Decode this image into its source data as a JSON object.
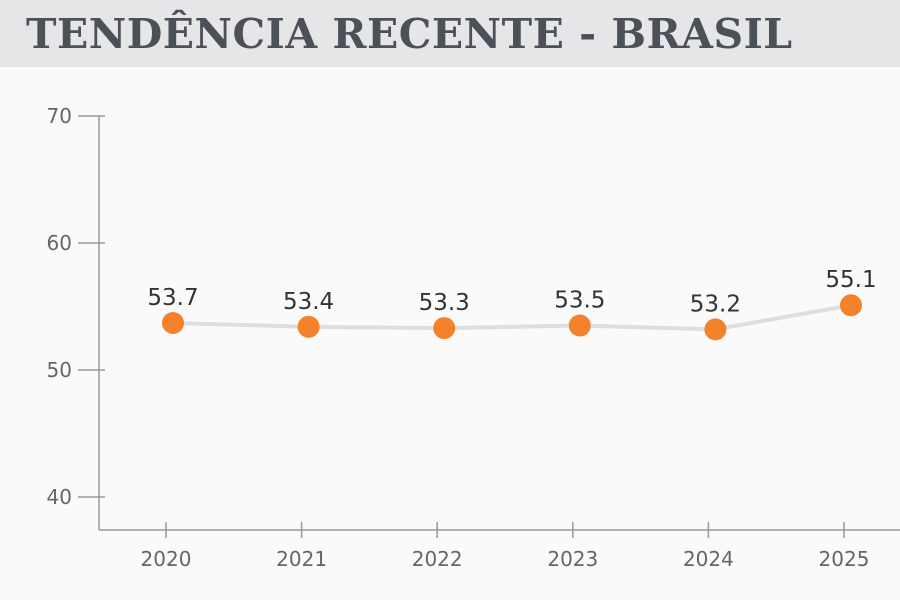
{
  "header": {
    "title": "TENDÊNCIA RECENTE - BRASIL"
  },
  "colors": {
    "background": "#fafafa",
    "header_band": "#e6e6e8",
    "title_text": "#4c5059",
    "marker": "#f4822a",
    "line": "#dedede",
    "axis": "#999999"
  },
  "chart_data": {
    "type": "line",
    "x": [
      "2020",
      "2021",
      "2022",
      "2023",
      "2024",
      "2025"
    ],
    "series": [
      {
        "values": [
          53.7,
          53.4,
          53.3,
          53.5,
          53.2,
          55.1
        ]
      }
    ],
    "data_labels": [
      "53.7",
      "53.4",
      "53.3",
      "53.5",
      "53.2",
      "55.1"
    ],
    "y_ticks": [
      "40",
      "50",
      "60",
      "70"
    ],
    "ylim": [
      35,
      70
    ],
    "grid": false,
    "legend": "none",
    "title": "",
    "xlabel": "",
    "ylabel": ""
  }
}
